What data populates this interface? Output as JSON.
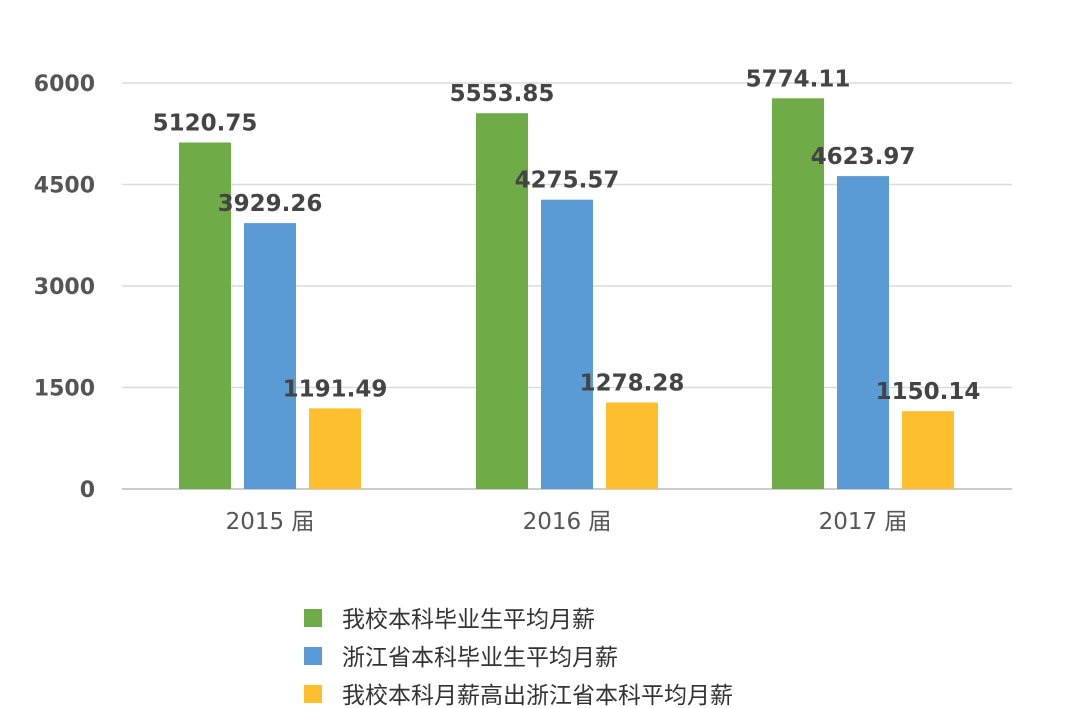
{
  "chart_data": {
    "type": "bar",
    "title": "",
    "xlabel": "",
    "ylabel": "",
    "categories": [
      "2015 届",
      "2016 届",
      "2017 届"
    ],
    "series": [
      {
        "name": "我校本科毕业生平均月薪",
        "color": "#6fac47",
        "values": [
          5120.75,
          5553.85,
          5774.11
        ],
        "labels": [
          "5120.75",
          "5553.85",
          "5774.11"
        ]
      },
      {
        "name": "浙江省本科毕业生平均月薪",
        "color": "#5b9bd5",
        "values": [
          3929.26,
          4275.57,
          4623.97
        ],
        "labels": [
          "3929.26",
          "4275.57",
          "4623.97"
        ]
      },
      {
        "name": "我校本科月薪高出浙江省本科平均月薪",
        "color": "#fdbf2d",
        "values": [
          1191.49,
          1278.28,
          1150.14
        ],
        "labels": [
          "1191.49",
          "1278.28",
          "1150.14"
        ]
      }
    ],
    "yticks": [
      "0",
      "1500",
      "3000",
      "4500",
      "6000"
    ],
    "ytick_values": [
      0,
      1500,
      3000,
      4500,
      6000
    ],
    "ylim": [
      0,
      6000
    ],
    "grid": true,
    "legend_position": "bottom-center"
  }
}
